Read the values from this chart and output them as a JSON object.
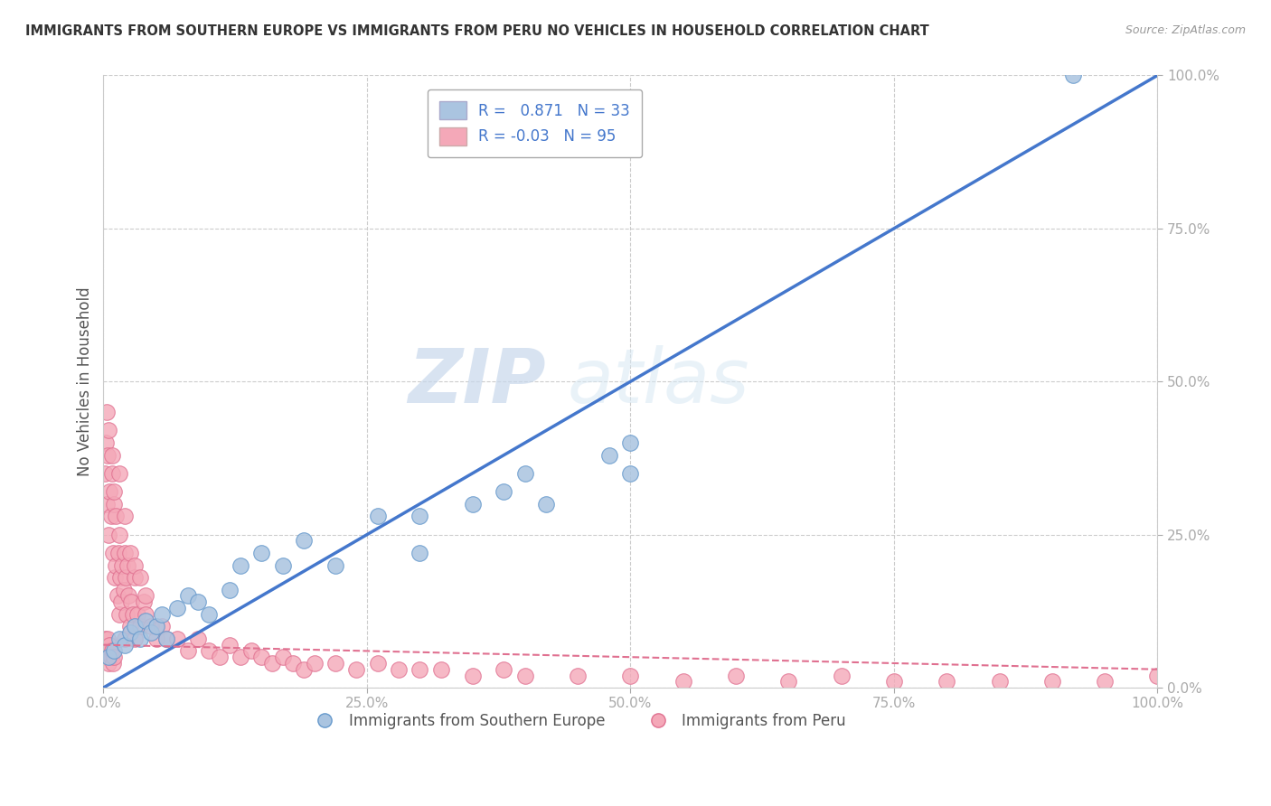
{
  "title": "IMMIGRANTS FROM SOUTHERN EUROPE VS IMMIGRANTS FROM PERU NO VEHICLES IN HOUSEHOLD CORRELATION CHART",
  "source": "Source: ZipAtlas.com",
  "ylabel": "No Vehicles in Household",
  "legend_label_blue": "Immigrants from Southern Europe",
  "legend_label_pink": "Immigrants from Peru",
  "R_blue": 0.871,
  "N_blue": 33,
  "R_pink": -0.03,
  "N_pink": 95,
  "blue_color": "#aac4e0",
  "blue_edge": "#6699cc",
  "pink_color": "#f4a8b8",
  "pink_edge": "#e07090",
  "blue_line_color": "#4477cc",
  "pink_line_color": "#e07090",
  "watermark_zip": "ZIP",
  "watermark_atlas": "atlas",
  "background": "#ffffff",
  "grid_color": "#cccccc",
  "title_color": "#333333",
  "axis_label_color": "#555555",
  "tick_color": "#5599cc",
  "xlim": [
    0,
    100
  ],
  "ylim": [
    0,
    100
  ],
  "xtick_labels": [
    "0.0%",
    "25.0%",
    "50.0%",
    "75.0%",
    "100.0%"
  ],
  "xtick_vals": [
    0,
    25,
    50,
    75,
    100
  ],
  "ytick_labels": [
    "0.0%",
    "25.0%",
    "50.0%",
    "75.0%",
    "100.0%"
  ],
  "ytick_vals": [
    0,
    25,
    50,
    75,
    100
  ],
  "blue_line_x0": 0,
  "blue_line_y0": 0,
  "blue_line_x1": 100,
  "blue_line_y1": 100,
  "pink_line_x0": 0,
  "pink_line_y0": 7,
  "pink_line_x1": 100,
  "pink_line_y1": 3,
  "blue_scatter_x": [
    0.5,
    1.0,
    1.5,
    2.0,
    2.5,
    3.0,
    3.5,
    4.0,
    4.5,
    5.0,
    5.5,
    6.0,
    7.0,
    8.0,
    9.0,
    10.0,
    12.0,
    13.0,
    15.0,
    17.0,
    19.0,
    22.0,
    26.0,
    30.0,
    30.0,
    35.0,
    38.0,
    40.0,
    42.0,
    48.0,
    50.0,
    50.0,
    92.0
  ],
  "blue_scatter_y": [
    5.0,
    6.0,
    8.0,
    7.0,
    9.0,
    10.0,
    8.0,
    11.0,
    9.0,
    10.0,
    12.0,
    8.0,
    13.0,
    15.0,
    14.0,
    12.0,
    16.0,
    20.0,
    22.0,
    20.0,
    24.0,
    20.0,
    28.0,
    22.0,
    28.0,
    30.0,
    32.0,
    35.0,
    30.0,
    38.0,
    35.0,
    40.0,
    100.0
  ],
  "pink_scatter_x": [
    0.1,
    0.1,
    0.2,
    0.2,
    0.3,
    0.3,
    0.4,
    0.4,
    0.5,
    0.5,
    0.6,
    0.6,
    0.7,
    0.7,
    0.8,
    0.8,
    0.9,
    0.9,
    1.0,
    1.0,
    1.1,
    1.2,
    1.3,
    1.4,
    1.5,
    1.5,
    1.6,
    1.7,
    1.8,
    1.9,
    2.0,
    2.0,
    2.1,
    2.2,
    2.3,
    2.4,
    2.5,
    2.6,
    2.8,
    3.0,
    3.0,
    3.2,
    3.5,
    3.8,
    4.0,
    4.5,
    5.0,
    5.5,
    6.0,
    7.0,
    8.0,
    9.0,
    10.0,
    11.0,
    12.0,
    13.0,
    14.0,
    15.0,
    16.0,
    17.0,
    18.0,
    19.0,
    20.0,
    22.0,
    24.0,
    26.0,
    28.0,
    30.0,
    32.0,
    35.0,
    38.0,
    40.0,
    45.0,
    50.0,
    55.0,
    60.0,
    65.0,
    70.0,
    75.0,
    80.0,
    85.0,
    90.0,
    95.0,
    100.0,
    0.3,
    0.5,
    0.8,
    1.0,
    1.2,
    1.5,
    2.0,
    2.5,
    3.0,
    3.5,
    4.0
  ],
  "pink_scatter_y": [
    8.0,
    35.0,
    5.0,
    40.0,
    6.0,
    30.0,
    8.0,
    38.0,
    4.0,
    25.0,
    7.0,
    32.0,
    5.0,
    28.0,
    6.0,
    35.0,
    4.0,
    22.0,
    5.0,
    30.0,
    18.0,
    20.0,
    15.0,
    22.0,
    12.0,
    25.0,
    18.0,
    14.0,
    20.0,
    16.0,
    8.0,
    22.0,
    18.0,
    12.0,
    20.0,
    15.0,
    10.0,
    14.0,
    12.0,
    8.0,
    18.0,
    12.0,
    10.0,
    14.0,
    12.0,
    10.0,
    8.0,
    10.0,
    8.0,
    8.0,
    6.0,
    8.0,
    6.0,
    5.0,
    7.0,
    5.0,
    6.0,
    5.0,
    4.0,
    5.0,
    4.0,
    3.0,
    4.0,
    4.0,
    3.0,
    4.0,
    3.0,
    3.0,
    3.0,
    2.0,
    3.0,
    2.0,
    2.0,
    2.0,
    1.0,
    2.0,
    1.0,
    2.0,
    1.0,
    1.0,
    1.0,
    1.0,
    1.0,
    2.0,
    45.0,
    42.0,
    38.0,
    32.0,
    28.0,
    35.0,
    28.0,
    22.0,
    20.0,
    18.0,
    15.0
  ]
}
